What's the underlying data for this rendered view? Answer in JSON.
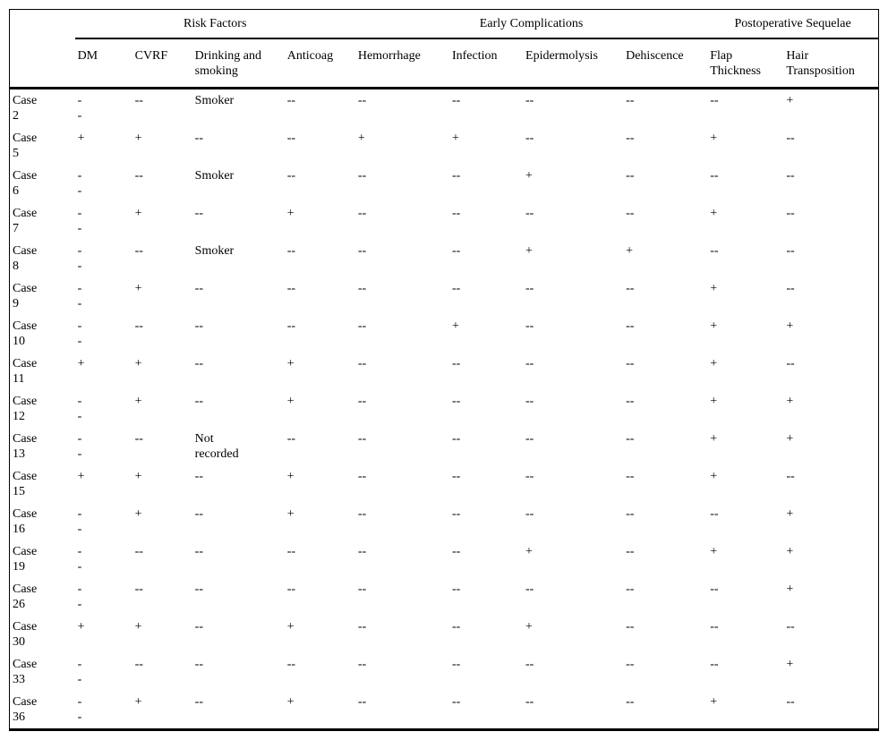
{
  "table": {
    "col_groups": [
      {
        "label": "Risk Factors",
        "span": 4
      },
      {
        "label": "Early Complications",
        "span": 4
      },
      {
        "label": "Postoperative Sequelae",
        "span": 2
      }
    ],
    "columns": [
      "DM",
      "CVRF",
      "Drinking and\nsmoking",
      "Anticoag",
      "Hemorrhage",
      "Infection",
      "Epidermolysis",
      "Dehiscence",
      "Flap\nThickness",
      "Hair\nTransposition"
    ],
    "column_keys": [
      "dm",
      "cvrf",
      "drinking-smoking",
      "anticoag",
      "hemorrhage",
      "infection",
      "epidermolysis",
      "dehiscence",
      "flap-thickness",
      "hair-transposition"
    ],
    "rows": [
      {
        "case": "Case\n2",
        "values": [
          "-\n-",
          "--",
          "Smoker",
          "--",
          "--",
          "--",
          "--",
          "--",
          "--",
          "+"
        ]
      },
      {
        "case": "Case\n5",
        "values": [
          "+",
          "+",
          "--",
          "--",
          "+",
          "+",
          "--",
          "--",
          "+",
          "--"
        ]
      },
      {
        "case": "Case\n6",
        "values": [
          "-\n-",
          "--",
          "Smoker",
          "--",
          "--",
          "--",
          "+",
          "--",
          "--",
          "--"
        ]
      },
      {
        "case": "Case\n7",
        "values": [
          "-\n-",
          "+",
          "--",
          "+",
          "--",
          "--",
          "--",
          "--",
          "+",
          "--"
        ]
      },
      {
        "case": "Case\n8",
        "values": [
          "-\n-",
          "--",
          "Smoker",
          "--",
          "--",
          "--",
          "+",
          "+",
          "--",
          "--"
        ]
      },
      {
        "case": "Case\n9",
        "values": [
          "-\n-",
          "+",
          "--",
          "--",
          "--",
          "--",
          "--",
          "--",
          "+",
          "--"
        ]
      },
      {
        "case": "Case\n10",
        "values": [
          "-\n-",
          "--",
          "--",
          "--",
          "--",
          "+",
          "--",
          "--",
          "+",
          "+"
        ]
      },
      {
        "case": "Case\n11",
        "values": [
          "+",
          "+",
          "--",
          "+",
          "--",
          "--",
          "--",
          "--",
          "+",
          "--"
        ]
      },
      {
        "case": "Case\n12",
        "values": [
          "-\n-",
          "+",
          "--",
          "+",
          "--",
          "--",
          "--",
          "--",
          "+",
          "+"
        ]
      },
      {
        "case": "Case\n13",
        "values": [
          "-\n-",
          "--",
          "Not\nrecorded",
          "--",
          "--",
          "--",
          "--",
          "--",
          "+",
          "+"
        ]
      },
      {
        "case": "Case\n15",
        "values": [
          "+",
          "+",
          "--",
          "+",
          "--",
          "--",
          "--",
          "--",
          "+",
          "--"
        ]
      },
      {
        "case": "Case\n16",
        "values": [
          "-\n-",
          "+",
          "--",
          "+",
          "--",
          "--",
          "--",
          "--",
          "--",
          "+"
        ]
      },
      {
        "case": "Case\n19",
        "values": [
          "-\n-",
          "--",
          "--",
          "--",
          "--",
          "--",
          "+",
          "--",
          "+",
          "+"
        ]
      },
      {
        "case": "Case\n26",
        "values": [
          "-\n-",
          "--",
          "--",
          "--",
          "--",
          "--",
          "--",
          "--",
          "--",
          "+"
        ]
      },
      {
        "case": "Case\n30",
        "values": [
          "+",
          "+",
          "--",
          "+",
          "--",
          "--",
          "+",
          "--",
          "--",
          "--"
        ]
      },
      {
        "case": "Case\n33",
        "values": [
          "-\n-",
          "--",
          "--",
          "--",
          "--",
          "--",
          "--",
          "--",
          "--",
          "+"
        ]
      },
      {
        "case": "Case\n36",
        "values": [
          "-\n-",
          "+",
          "--",
          "+",
          "--",
          "--",
          "--",
          "--",
          "+",
          "--"
        ]
      }
    ]
  }
}
